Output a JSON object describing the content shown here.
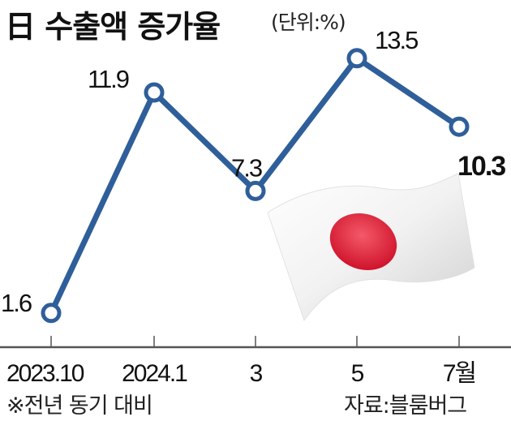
{
  "chart_data": {
    "type": "line",
    "title": "日 수출액 증가율",
    "unit_label": "(단위:%)",
    "categories": [
      "2023.10",
      "2024.1",
      "3",
      "5",
      "7월"
    ],
    "values": [
      1.6,
      11.9,
      7.3,
      13.5,
      10.3
    ],
    "data_labels": [
      "1.6",
      "11.9",
      "7.3",
      "13.5",
      "10.3"
    ],
    "highlight_last": true,
    "ylim": [
      0,
      15.5
    ],
    "grid": false,
    "line_color": "#2f5f9a",
    "note": "※전년 동기 대비",
    "source": "자료:블룸버그"
  }
}
